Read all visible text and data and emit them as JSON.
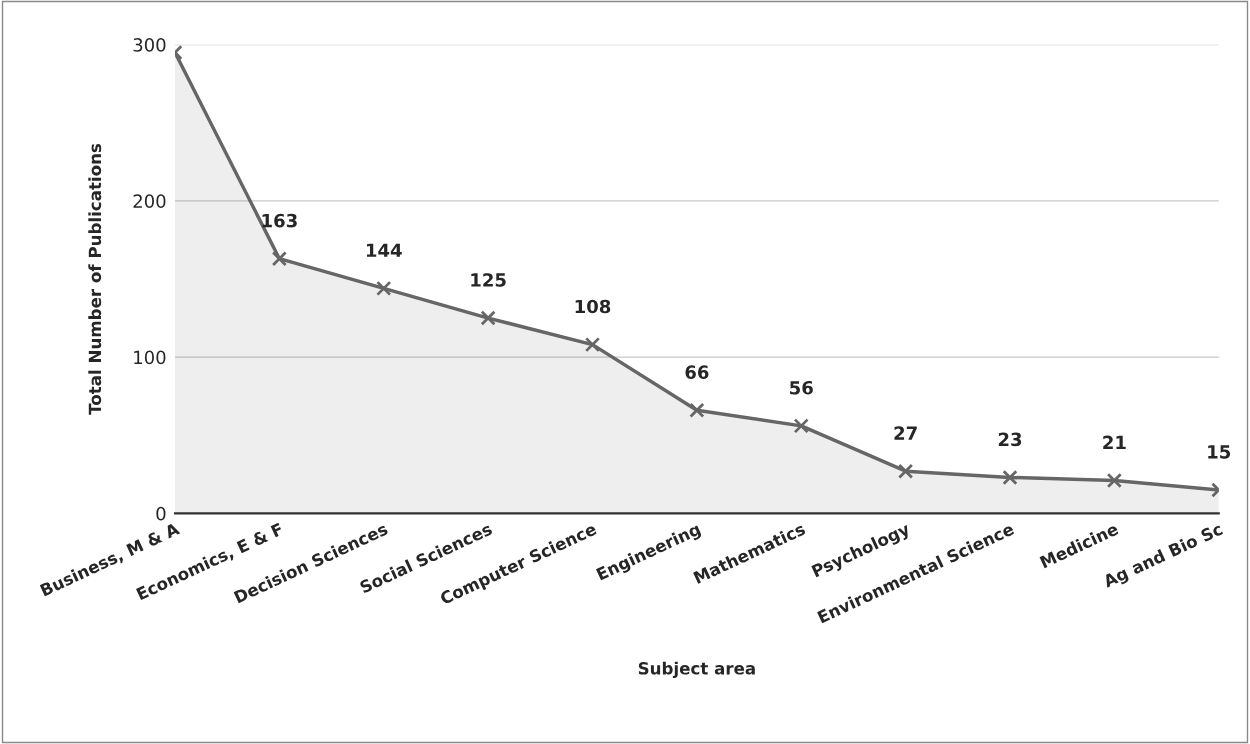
{
  "chart_data": {
    "type": "area",
    "xlabel": "Subject area",
    "ylabel": "Total Number of Publications",
    "categories": [
      "Business, M & A",
      "Economics, E & F",
      "Decision Sciences",
      "Social Sciences",
      "Computer Science",
      "Engineering",
      "Mathematics",
      "Psychology",
      "Environmental Science",
      "Medicine",
      "Ag and Bio Sc"
    ],
    "series": [
      {
        "color": "#666666",
        "values": [
          295,
          163,
          144,
          125,
          108,
          66,
          56,
          27,
          23,
          21,
          15
        ],
        "value_labels": [
          null,
          "163",
          "144",
          "125",
          "108",
          "66",
          "56",
          "27",
          "23",
          "21",
          "15"
        ]
      }
    ],
    "ylim": [
      0,
      300
    ],
    "yticks": [
      0,
      100,
      200,
      300
    ],
    "grid": "y",
    "marker": "cross",
    "line_style": "solid",
    "legend": false
  }
}
